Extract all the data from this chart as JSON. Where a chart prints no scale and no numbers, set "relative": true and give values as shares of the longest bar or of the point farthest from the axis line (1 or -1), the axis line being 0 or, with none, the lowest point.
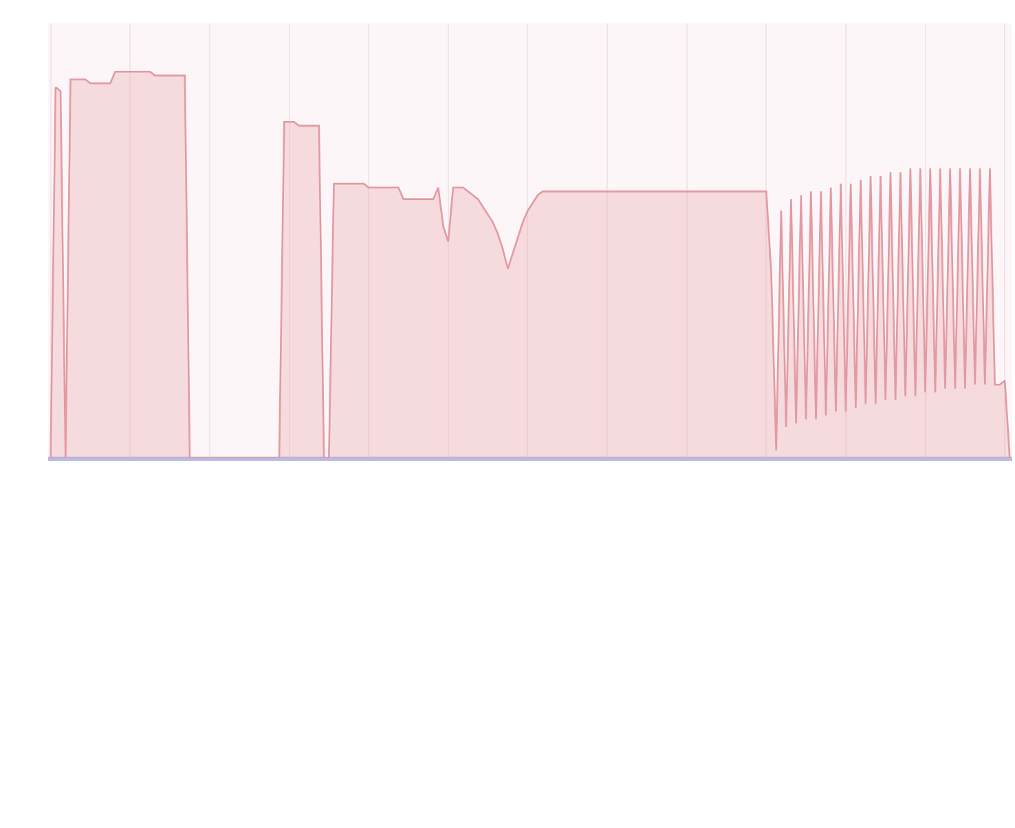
{
  "chart_data": {
    "type": "area",
    "relative": true,
    "grid": "x",
    "categories": [
      null,
      null,
      null,
      null,
      null,
      null,
      null,
      null,
      null,
      null,
      null,
      null,
      null,
      null,
      null,
      null,
      null,
      null,
      null,
      null,
      null,
      null,
      null,
      null,
      null,
      null,
      null,
      null,
      null,
      null,
      null,
      null,
      null,
      null,
      null,
      null,
      null,
      null,
      null,
      null,
      null,
      null,
      null,
      null,
      null,
      null,
      null,
      null,
      null,
      null,
      null,
      null,
      null,
      null,
      null,
      null,
      null,
      null,
      null,
      null,
      null,
      null,
      null,
      null,
      null,
      null,
      null,
      null,
      null,
      null,
      null,
      null,
      null,
      null,
      null,
      null,
      null,
      null,
      null,
      null,
      null,
      null,
      null,
      null,
      null,
      null,
      null,
      null,
      null,
      null,
      null,
      null,
      null,
      null,
      null,
      null,
      null,
      null,
      null,
      null,
      null,
      null,
      null,
      null,
      null,
      null,
      null,
      null,
      null,
      null,
      null,
      null,
      null,
      null,
      null,
      null,
      null,
      null,
      null,
      null,
      null,
      null,
      null,
      null,
      null,
      null,
      null,
      null,
      null,
      null,
      null,
      null,
      null,
      null,
      null,
      null,
      null,
      null,
      null,
      null,
      null,
      null,
      null,
      null,
      null,
      null,
      null,
      null,
      null,
      null,
      null,
      null,
      null,
      null,
      null,
      null,
      null,
      null,
      null,
      null,
      null,
      null,
      null,
      null,
      null,
      null,
      null,
      null,
      null,
      null,
      null,
      null,
      null,
      null,
      null,
      null,
      null,
      null,
      null,
      null,
      null,
      null,
      null,
      null,
      null,
      null,
      null,
      null,
      null,
      null,
      null,
      null,
      null,
      null
    ],
    "series": [
      {
        "color": "#e39aa2",
        "values": [
          0,
          0.96,
          0.95,
          0,
          0.98,
          0.98,
          0.98,
          0.98,
          0.97,
          0.97,
          0.97,
          0.97,
          0.97,
          1.0,
          1.0,
          1.0,
          1.0,
          1.0,
          1.0,
          1.0,
          1.0,
          0.99,
          0.99,
          0.99,
          0.99,
          0.99,
          0.99,
          0.99,
          0,
          0,
          0,
          0,
          0,
          0,
          0,
          0,
          0,
          0,
          0,
          0,
          0,
          0,
          0,
          0,
          0,
          0,
          0,
          0.87,
          0.87,
          0.87,
          0.86,
          0.86,
          0.86,
          0.86,
          0.86,
          0,
          0,
          0.71,
          0.71,
          0.71,
          0.71,
          0.71,
          0.71,
          0.71,
          0.7,
          0.7,
          0.7,
          0.7,
          0.7,
          0.7,
          0.7,
          0.67,
          0.67,
          0.67,
          0.67,
          0.67,
          0.67,
          0.67,
          0.7,
          0.6,
          0.56,
          0.7,
          0.7,
          0.7,
          0.69,
          0.68,
          0.67,
          0.65,
          0.63,
          0.61,
          0.58,
          0.54,
          0.49,
          0.53,
          0.57,
          0.61,
          0.64,
          0.66,
          0.68,
          0.69,
          0.69,
          0.69,
          0.69,
          0.69,
          0.69,
          0.69,
          0.69,
          0.69,
          0.69,
          0.69,
          0.69,
          0.69,
          0.69,
          0.69,
          0.69,
          0.69,
          0.69,
          0.69,
          0.69,
          0.69,
          0.69,
          0.69,
          0.69,
          0.69,
          0.69,
          0.69,
          0.69,
          0.69,
          0.69,
          0.69,
          0.69,
          0.69,
          0.69,
          0.69,
          0.69,
          0.69,
          0.69,
          0.69,
          0.69,
          0.69,
          0.69,
          0.69,
          0.69,
          0.69,
          0.69,
          0.48,
          0.02,
          0.64,
          0.08,
          0.67,
          0.09,
          0.68,
          0.1,
          0.69,
          0.1,
          0.69,
          0.11,
          0.7,
          0.12,
          0.71,
          0.12,
          0.71,
          0.13,
          0.72,
          0.14,
          0.73,
          0.14,
          0.73,
          0.15,
          0.74,
          0.15,
          0.74,
          0.16,
          0.75,
          0.16,
          0.75,
          0.17,
          0.75,
          0.17,
          0.75,
          0.18,
          0.75,
          0.18,
          0.75,
          0.18,
          0.75,
          0.19,
          0.75,
          0.19,
          0.75,
          0.19,
          0.19,
          0.2,
          0
        ]
      }
    ]
  }
}
